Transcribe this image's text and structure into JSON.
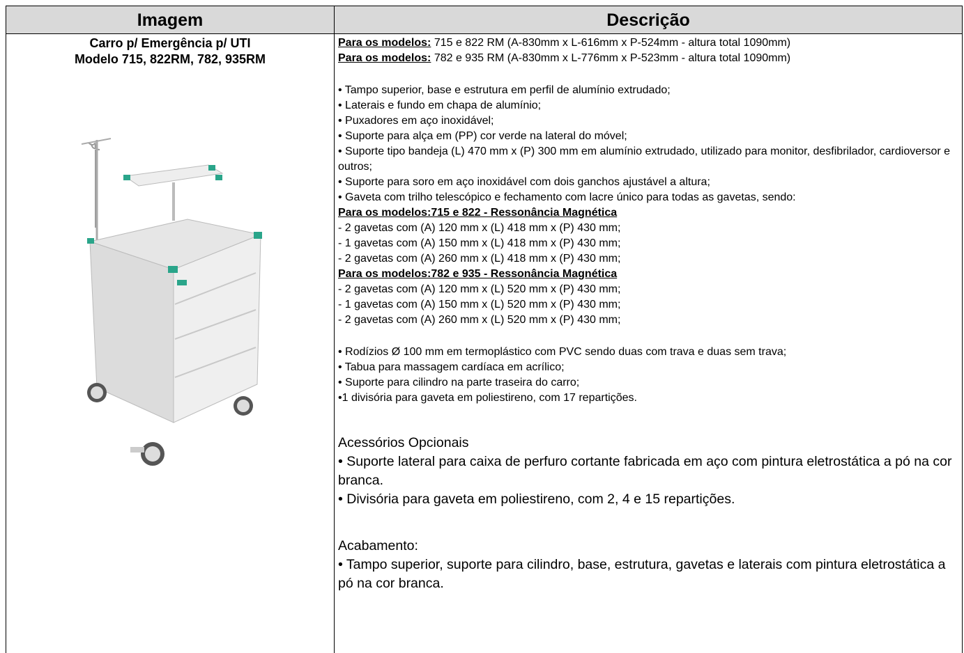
{
  "table": {
    "headers": [
      "Imagem",
      "Descrição"
    ],
    "image_cell": {
      "title": "Carro p/ Emergência p/ UTI",
      "subtitle": "Modelo 715, 822RM, 782, 935RM"
    },
    "description": {
      "dimensions": [
        {
          "label": "Para os modelos:",
          "text": " 715 e 822 RM (A-830mm x L-616mm x P-524mm - altura total 1090mm)"
        },
        {
          "label": "Para os modelos:",
          "text": " 782 e 935 RM (A-830mm x L-776mm x P-523mm - altura total 1090mm)"
        }
      ],
      "features": [
        "• Tampo superior, base e estrutura em perfil de alumínio extrudado;",
        "• Laterais e fundo em chapa de alumínio;",
        "• Puxadores em aço inoxidável;",
        "• Suporte para alça em (PP) cor verde na lateral do móvel;",
        "• Suporte tipo bandeja (L) 470 mm x (P) 300 mm em alumínio extrudado, utilizado para monitor, desfibrilador, cardioversor e outros;",
        "• Suporte para soro em aço inoxidável com dois ganchos ajustável a altura;",
        "• Gaveta com trilho telescópico e fechamento com lacre único para todas as gavetas, sendo:"
      ],
      "drawer_groups": [
        {
          "heading": "Para os modelos:715 e 822 - Ressonância Magnética",
          "lines": [
            "- 2 gavetas com (A) 120 mm x (L) 418 mm x (P) 430 mm;",
            "- 1 gavetas com (A) 150 mm x (L) 418 mm x (P) 430 mm;",
            "- 2 gavetas com (A) 260 mm x (L) 418 mm x (P) 430 mm;"
          ]
        },
        {
          "heading": "Para os modelos:782 e 935 - Ressonância Magnética",
          "lines": [
            "- 2 gavetas com (A) 120 mm x (L) 520 mm x (P) 430 mm;",
            "- 1 gavetas com (A) 150 mm x (L) 520 mm x (P) 430 mm;",
            "- 2 gavetas com (A) 260 mm x (L) 520 mm x (P) 430 mm;"
          ]
        }
      ],
      "extras": [
        "• Rodízios Ø 100 mm em termoplástico com PVC sendo duas com trava e duas sem trava;",
        "• Tabua para massagem cardíaca em acrílico;",
        "• Suporte para cilindro na parte traseira do carro;",
        "•1 divisória para gaveta em poliestireno, com 17 repartições."
      ],
      "optional": {
        "heading": "Acessórios Opcionais",
        "items": [
          "• Suporte lateral para caixa de perfuro cortante fabricada em aço com pintura eletrostática a pó na cor branca.",
          "• Divisória para gaveta em poliestireno, com 2, 4 e 15 repartições."
        ]
      },
      "finish": {
        "heading": "Acabamento:",
        "items": [
          "• Tampo superior, suporte para cilindro, base, estrutura, gavetas e laterais com pintura eletrostática a pó na cor branca."
        ]
      }
    }
  }
}
